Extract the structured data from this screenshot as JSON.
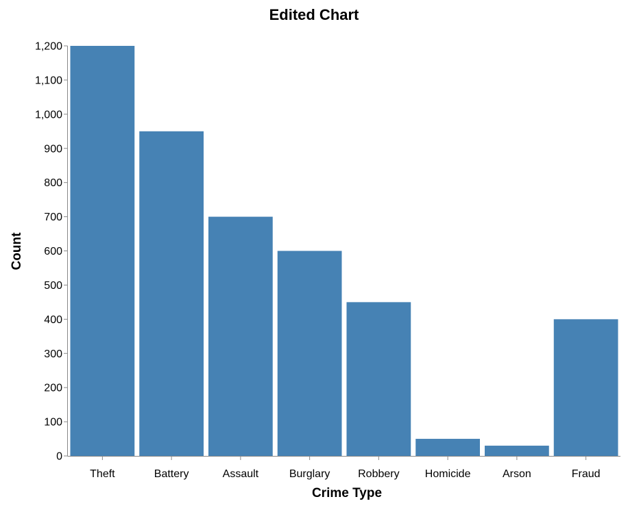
{
  "chart_data": {
    "type": "bar",
    "title": "Edited Chart",
    "xlabel": "Crime Type",
    "ylabel": "Count",
    "categories": [
      "Theft",
      "Battery",
      "Assault",
      "Burglary",
      "Robbery",
      "Homicide",
      "Arson",
      "Fraud"
    ],
    "values": [
      1200,
      950,
      700,
      600,
      450,
      50,
      30,
      400
    ],
    "ylim": [
      0,
      1200
    ],
    "yticks": [
      0,
      100,
      200,
      300,
      400,
      500,
      600,
      700,
      800,
      900,
      1000,
      1100,
      1200
    ],
    "ytick_labels": [
      "0",
      "100",
      "200",
      "300",
      "400",
      "500",
      "600",
      "700",
      "800",
      "900",
      "1,000",
      "1,100",
      "1,200"
    ],
    "bar_color": "#4682b4",
    "axis_color": "#888888",
    "grid": false
  }
}
